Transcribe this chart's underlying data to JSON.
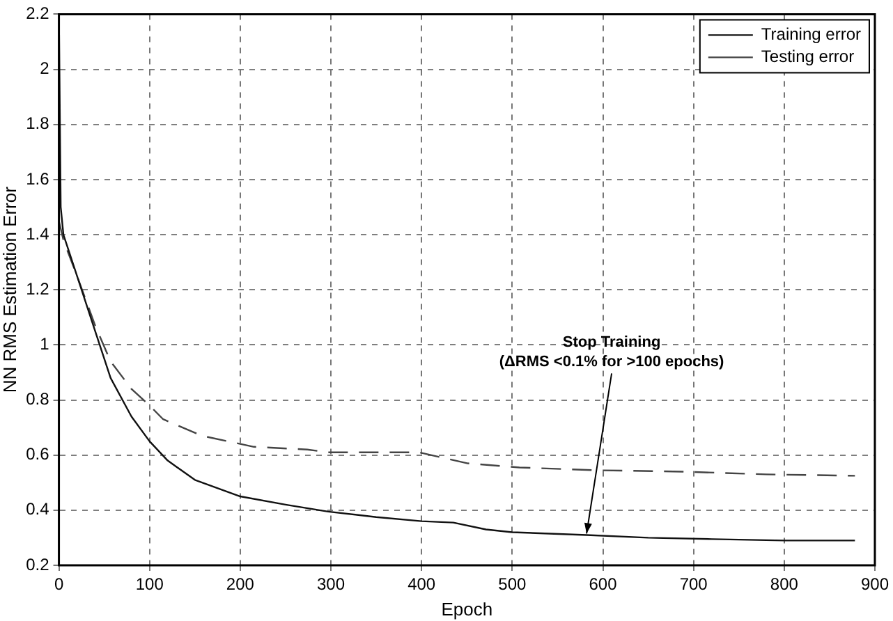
{
  "chart_data": {
    "type": "line",
    "xlabel": "Epoch",
    "ylabel": "NN RMS Estimation Error",
    "xlim": [
      0,
      900
    ],
    "xticks": [
      0,
      100,
      200,
      300,
      400,
      500,
      600,
      700,
      800,
      900
    ],
    "ylim": [
      0.2,
      2.2
    ],
    "yticks": [
      0.2,
      0.4,
      0.6,
      0.8,
      1,
      1.2,
      1.4,
      1.6,
      1.8,
      2,
      2.2
    ],
    "grid": true,
    "legend": "top right",
    "marker": "none",
    "annotations": [
      {
        "text": "Stop Training\n(ΔRMS <0.1% for >100 epochs)",
        "x": 582,
        "y": 0.31
      }
    ],
    "series": [
      {
        "name": "Training error",
        "color": "#111111",
        "line_style": "solid",
        "x": [
          0,
          2,
          5,
          20,
          40,
          57,
          80,
          100,
          120,
          150,
          200,
          250,
          297,
          350,
          400,
          435,
          471,
          500,
          582,
          650,
          720,
          800,
          878
        ],
        "values": [
          2.2,
          1.5,
          1.4,
          1.25,
          1.05,
          0.88,
          0.74,
          0.65,
          0.58,
          0.51,
          0.45,
          0.42,
          0.395,
          0.375,
          0.36,
          0.355,
          0.33,
          0.32,
          0.31,
          0.3,
          0.295,
          0.29,
          0.29
        ]
      },
      {
        "name": "Testing error",
        "color": "#444444",
        "line_style": "dashed",
        "x": [
          0,
          5,
          20,
          40,
          57,
          80,
          100,
          115,
          158,
          215,
          274,
          297,
          397,
          451,
          508,
          593,
          688,
          780,
          878
        ],
        "values": [
          1.45,
          1.38,
          1.25,
          1.07,
          0.94,
          0.84,
          0.78,
          0.73,
          0.67,
          0.63,
          0.62,
          0.61,
          0.61,
          0.57,
          0.555,
          0.545,
          0.54,
          0.53,
          0.525
        ]
      }
    ]
  }
}
